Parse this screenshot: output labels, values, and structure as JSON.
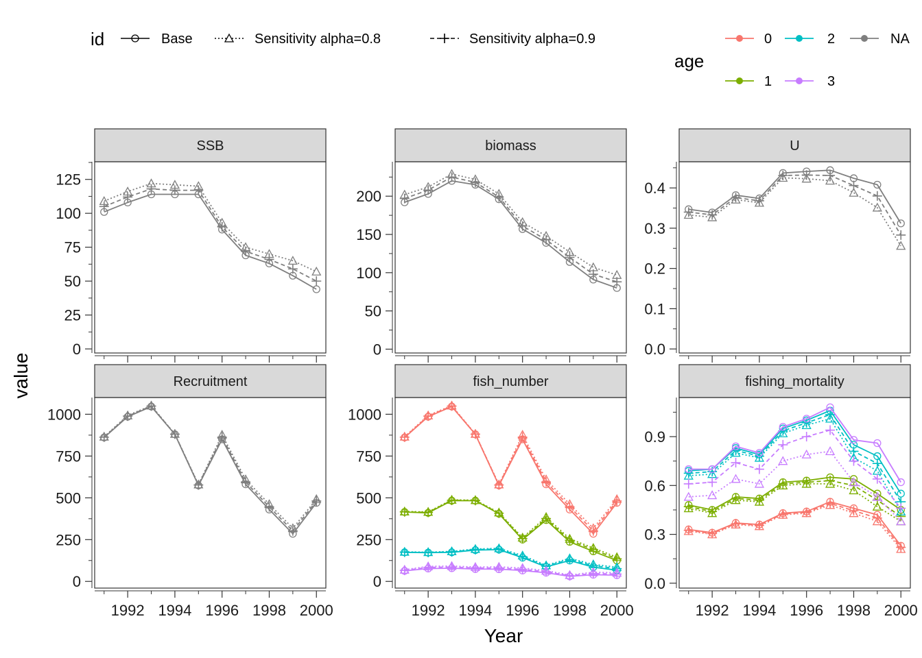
{
  "legend": {
    "id_title": "id",
    "id_items": [
      {
        "label": "Base",
        "dash": "solid",
        "shape": "circle"
      },
      {
        "label": "Sensitivity alpha=0.8",
        "dash": "dotted",
        "shape": "triangle"
      },
      {
        "label": "Sensitivity alpha=0.9",
        "dash": "dashed",
        "shape": "plus"
      }
    ],
    "age_title": "age",
    "age_items": [
      {
        "label": "0",
        "color": "#F8766D"
      },
      {
        "label": "2",
        "color": "#00BFC4"
      },
      {
        "label": "NA",
        "color": "#7F7F7F"
      },
      {
        "label": "1",
        "color": "#7CAE00"
      },
      {
        "label": "3",
        "color": "#C77CFF"
      }
    ]
  },
  "axis_labels": {
    "x": "Year",
    "y": "value"
  },
  "chart_data": [
    {
      "type": "line",
      "title": "SSB",
      "x": [
        1991,
        1992,
        1993,
        1994,
        1995,
        1996,
        1997,
        1998,
        1999,
        2000
      ],
      "xticks": [
        1992,
        1994,
        1996,
        1998,
        2000
      ],
      "ylim": [
        -3,
        138
      ],
      "yticks": [
        0,
        25,
        50,
        75,
        100,
        125
      ],
      "series": [
        {
          "id": "Base",
          "age": "NA",
          "values": [
            101,
            108,
            114,
            114,
            114,
            88,
            69,
            63,
            54,
            44
          ]
        },
        {
          "id": "Sensitivity alpha=0.8",
          "age": "NA",
          "values": [
            109,
            116,
            122,
            121,
            120,
            93,
            75,
            70,
            65,
            57
          ]
        },
        {
          "id": "Sensitivity alpha=0.9",
          "age": "NA",
          "values": [
            105,
            112,
            118,
            117,
            117,
            90,
            72,
            66,
            59,
            50
          ]
        }
      ]
    },
    {
      "type": "line",
      "title": "biomass",
      "x": [
        1991,
        1992,
        1993,
        1994,
        1995,
        1996,
        1997,
        1998,
        1999,
        2000
      ],
      "xticks": [
        1992,
        1994,
        1996,
        1998,
        2000
      ],
      "ylim": [
        -5,
        245
      ],
      "yticks": [
        0,
        50,
        100,
        150,
        200
      ],
      "series": [
        {
          "id": "Base",
          "age": "NA",
          "values": [
            192,
            203,
            220,
            215,
            196,
            157,
            139,
            114,
            91,
            80
          ]
        },
        {
          "id": "Sensitivity alpha=0.8",
          "age": "NA",
          "values": [
            202,
            212,
            229,
            222,
            203,
            166,
            148,
            127,
            107,
            97
          ]
        },
        {
          "id": "Sensitivity alpha=0.9",
          "age": "NA",
          "values": [
            197,
            208,
            225,
            218,
            199,
            161,
            143,
            120,
            98,
            88
          ]
        }
      ]
    },
    {
      "type": "line",
      "title": "U",
      "x": [
        1991,
        1992,
        1993,
        1994,
        1995,
        1996,
        1997,
        1998,
        1999,
        2000
      ],
      "xticks": [
        1992,
        1994,
        1996,
        1998,
        2000
      ],
      "ylim": [
        -0.01,
        0.465
      ],
      "yticks": [
        0.0,
        0.1,
        0.2,
        0.3,
        0.4
      ],
      "series": [
        {
          "id": "Base",
          "age": "NA",
          "values": [
            0.347,
            0.339,
            0.382,
            0.374,
            0.437,
            0.441,
            0.444,
            0.424,
            0.408,
            0.312
          ]
        },
        {
          "id": "Sensitivity alpha=0.8",
          "age": "NA",
          "values": [
            0.333,
            0.327,
            0.371,
            0.363,
            0.425,
            0.423,
            0.418,
            0.388,
            0.351,
            0.256
          ]
        },
        {
          "id": "Sensitivity alpha=0.9",
          "age": "NA",
          "values": [
            0.34,
            0.333,
            0.376,
            0.368,
            0.431,
            0.432,
            0.431,
            0.406,
            0.38,
            0.283
          ]
        }
      ]
    },
    {
      "type": "line",
      "title": "Recruitment",
      "x": [
        1991,
        1992,
        1993,
        1994,
        1995,
        1996,
        1997,
        1998,
        1999,
        2000
      ],
      "xticks": [
        1992,
        1994,
        1996,
        1998,
        2000
      ],
      "ylim": [
        -40,
        1100
      ],
      "yticks": [
        0,
        250,
        500,
        750,
        1000
      ],
      "series": [
        {
          "id": "Base",
          "age": "NA",
          "values": [
            861,
            985,
            1046,
            880,
            574,
            850,
            581,
            430,
            285,
            470
          ]
        },
        {
          "id": "Sensitivity alpha=0.8",
          "age": "NA",
          "values": [
            866,
            993,
            1052,
            882,
            580,
            877,
            610,
            462,
            318,
            492
          ]
        },
        {
          "id": "Sensitivity alpha=0.9",
          "age": "NA",
          "values": [
            863,
            989,
            1049,
            881,
            577,
            863,
            595,
            446,
            302,
            481
          ]
        }
      ]
    },
    {
      "type": "line",
      "title": "fish_number",
      "x": [
        1991,
        1992,
        1993,
        1994,
        1995,
        1996,
        1997,
        1998,
        1999,
        2000
      ],
      "xticks": [
        1992,
        1994,
        1996,
        1998,
        2000
      ],
      "ylim": [
        -40,
        1100
      ],
      "yticks": [
        0,
        250,
        500,
        750,
        1000
      ],
      "series": [
        {
          "id": "Base",
          "age": "0",
          "values": [
            861,
            985,
            1046,
            880,
            574,
            850,
            581,
            430,
            285,
            470
          ]
        },
        {
          "id": "Sensitivity alpha=0.8",
          "age": "0",
          "values": [
            866,
            993,
            1052,
            882,
            580,
            877,
            610,
            462,
            318,
            492
          ]
        },
        {
          "id": "Sensitivity alpha=0.9",
          "age": "0",
          "values": [
            863,
            989,
            1049,
            881,
            577,
            863,
            595,
            446,
            302,
            481
          ]
        },
        {
          "id": "Base",
          "age": "1",
          "values": [
            415,
            410,
            483,
            483,
            405,
            250,
            367,
            237,
            180,
            125
          ]
        },
        {
          "id": "Sensitivity alpha=0.8",
          "age": "1",
          "values": [
            418,
            416,
            488,
            486,
            412,
            262,
            385,
            255,
            200,
            145
          ]
        },
        {
          "id": "Sensitivity alpha=0.9",
          "age": "1",
          "values": [
            416,
            413,
            485,
            484,
            408,
            256,
            376,
            246,
            190,
            135
          ]
        },
        {
          "id": "Base",
          "age": "2",
          "values": [
            174,
            172,
            174,
            187,
            190,
            142,
            87,
            125,
            85,
            67
          ]
        },
        {
          "id": "Sensitivity alpha=0.8",
          "age": "2",
          "values": [
            177,
            175,
            180,
            194,
            198,
            155,
            96,
            138,
            102,
            85
          ]
        },
        {
          "id": "Sensitivity alpha=0.9",
          "age": "2",
          "values": [
            175,
            173,
            177,
            190,
            194,
            148,
            91,
            131,
            94,
            76
          ]
        },
        {
          "id": "Base",
          "age": "3",
          "values": [
            63,
            77,
            79,
            74,
            73,
            65,
            52,
            30,
            40,
            37
          ]
        },
        {
          "id": "Sensitivity alpha=0.8",
          "age": "3",
          "values": [
            70,
            90,
            92,
            86,
            87,
            80,
            64,
            38,
            55,
            52
          ]
        },
        {
          "id": "Sensitivity alpha=0.9",
          "age": "3",
          "values": [
            66,
            84,
            86,
            80,
            80,
            72,
            58,
            34,
            47,
            44
          ]
        }
      ]
    },
    {
      "type": "line",
      "title": "fishing_mortality",
      "x": [
        1991,
        1992,
        1993,
        1994,
        1995,
        1996,
        1997,
        1998,
        1999,
        2000
      ],
      "xticks": [
        1992,
        1994,
        1996,
        1998,
        2000
      ],
      "ylim": [
        -0.03,
        1.14
      ],
      "yticks": [
        0.0,
        0.3,
        0.6,
        0.9
      ],
      "series": [
        {
          "id": "Base",
          "age": "0",
          "values": [
            0.33,
            0.31,
            0.37,
            0.36,
            0.43,
            0.44,
            0.5,
            0.46,
            0.42,
            0.23
          ]
        },
        {
          "id": "Sensitivity alpha=0.8",
          "age": "0",
          "values": [
            0.32,
            0.3,
            0.36,
            0.35,
            0.42,
            0.43,
            0.48,
            0.43,
            0.38,
            0.21
          ]
        },
        {
          "id": "Sensitivity alpha=0.9",
          "age": "0",
          "values": [
            0.325,
            0.305,
            0.365,
            0.355,
            0.425,
            0.435,
            0.49,
            0.445,
            0.4,
            0.22
          ]
        },
        {
          "id": "Base",
          "age": "1",
          "values": [
            0.48,
            0.45,
            0.53,
            0.52,
            0.62,
            0.63,
            0.65,
            0.64,
            0.55,
            0.45
          ]
        },
        {
          "id": "Sensitivity alpha=0.8",
          "age": "1",
          "values": [
            0.46,
            0.43,
            0.51,
            0.5,
            0.6,
            0.61,
            0.61,
            0.57,
            0.47,
            0.38
          ]
        },
        {
          "id": "Sensitivity alpha=0.9",
          "age": "1",
          "values": [
            0.47,
            0.44,
            0.52,
            0.51,
            0.61,
            0.62,
            0.63,
            0.6,
            0.51,
            0.41
          ]
        },
        {
          "id": "Base",
          "age": "2",
          "values": [
            0.69,
            0.7,
            0.83,
            0.79,
            0.95,
            1.0,
            1.06,
            0.85,
            0.78,
            0.55
          ]
        },
        {
          "id": "Sensitivity alpha=0.8",
          "age": "2",
          "values": [
            0.66,
            0.67,
            0.8,
            0.77,
            0.92,
            0.97,
            1.01,
            0.77,
            0.69,
            0.44
          ]
        },
        {
          "id": "Sensitivity alpha=0.9",
          "age": "2",
          "values": [
            0.675,
            0.685,
            0.815,
            0.78,
            0.935,
            0.985,
            1.035,
            0.81,
            0.735,
            0.5
          ]
        },
        {
          "id": "Base",
          "age": "3",
          "values": [
            0.7,
            0.7,
            0.84,
            0.8,
            0.96,
            1.01,
            1.08,
            0.88,
            0.86,
            0.62
          ]
        },
        {
          "id": "Sensitivity alpha=0.8",
          "age": "3",
          "values": [
            0.53,
            0.54,
            0.64,
            0.61,
            0.75,
            0.79,
            0.81,
            0.62,
            0.53,
            0.38
          ]
        },
        {
          "id": "Sensitivity alpha=0.9",
          "age": "3",
          "values": [
            0.61,
            0.62,
            0.74,
            0.7,
            0.85,
            0.9,
            0.94,
            0.75,
            0.64,
            0.46
          ]
        }
      ]
    }
  ]
}
